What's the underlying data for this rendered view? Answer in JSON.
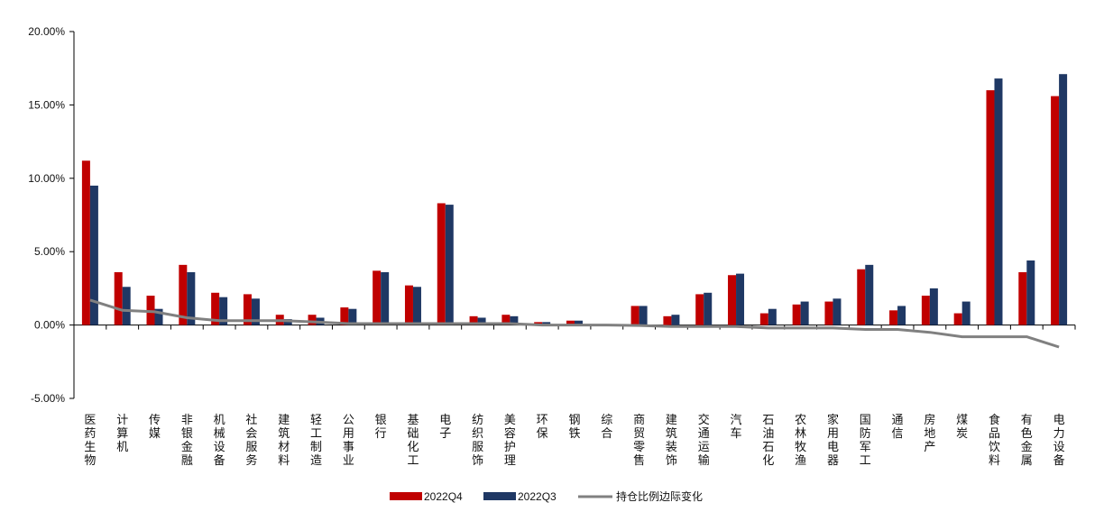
{
  "chart_data": {
    "type": "bar",
    "title": "",
    "xlabel": "",
    "ylabel": "",
    "ylim": [
      -0.05,
      0.2
    ],
    "yticks": [
      "20.00%",
      "15.00%",
      "10.00%",
      "5.00%",
      "0.00%",
      "-5.00%"
    ],
    "ytick_values": [
      0.2,
      0.15,
      0.1,
      0.05,
      0,
      -0.05
    ],
    "grid": false,
    "legend_position": "bottom",
    "colors": {
      "q4": "#c00000",
      "q3": "#1f3864",
      "line": "#808080"
    },
    "categories": [
      "医药生物",
      "计算机",
      "传媒",
      "非银金融",
      "机械设备",
      "社会服务",
      "建筑材料",
      "轻工制造",
      "公用事业",
      "银行",
      "基础化工",
      "电子",
      "纺织服饰",
      "美容护理",
      "环保",
      "钢铁",
      "综合",
      "商贸零售",
      "建筑装饰",
      "交通运输",
      "汽车",
      "石油石化",
      "农林牧渔",
      "家用电器",
      "国防军工",
      "通信",
      "房地产",
      "煤炭",
      "食品饮料",
      "有色金属",
      "电力设备"
    ],
    "series": [
      {
        "name": "2022Q4",
        "kind": "bar",
        "values": [
          0.112,
          0.036,
          0.02,
          0.041,
          0.022,
          0.021,
          0.007,
          0.007,
          0.012,
          0.037,
          0.027,
          0.083,
          0.006,
          0.007,
          0.002,
          0.003,
          0.0,
          0.013,
          0.006,
          0.021,
          0.034,
          0.008,
          0.014,
          0.016,
          0.038,
          0.01,
          0.02,
          0.008,
          0.16,
          0.036,
          0.156
        ]
      },
      {
        "name": "2022Q3",
        "kind": "bar",
        "values": [
          0.095,
          0.026,
          0.011,
          0.036,
          0.019,
          0.018,
          0.004,
          0.005,
          0.011,
          0.036,
          0.026,
          0.082,
          0.005,
          0.006,
          0.002,
          0.003,
          0.0,
          0.013,
          0.007,
          0.022,
          0.035,
          0.011,
          0.016,
          0.018,
          0.041,
          0.013,
          0.025,
          0.016,
          0.168,
          0.044,
          0.171
        ]
      },
      {
        "name": "持仓比例边际变化",
        "kind": "line",
        "values": [
          0.017,
          0.01,
          0.009,
          0.005,
          0.003,
          0.003,
          0.003,
          0.002,
          0.001,
          0.001,
          0.001,
          0.001,
          0.001,
          0.001,
          0.0,
          0.0,
          0.0,
          -0.0003,
          -0.001,
          -0.001,
          -0.001,
          -0.002,
          -0.002,
          -0.002,
          -0.003,
          -0.003,
          -0.005,
          -0.008,
          -0.008,
          -0.008,
          -0.015
        ]
      }
    ]
  }
}
